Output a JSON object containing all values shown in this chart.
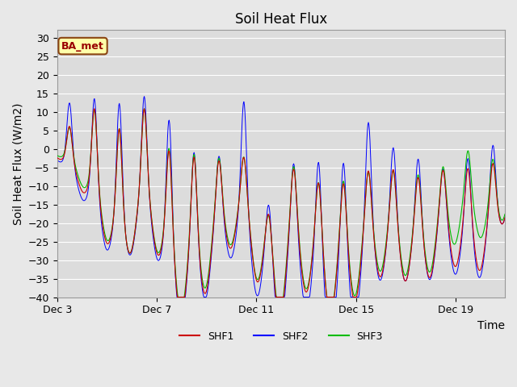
{
  "title": "Soil Heat Flux",
  "ylabel": "Soil Heat Flux (W/m2)",
  "xlabel": "Time",
  "ylim": [
    -40,
    32
  ],
  "yticks": [
    -40,
    -35,
    -30,
    -25,
    -20,
    -15,
    -10,
    -5,
    0,
    5,
    10,
    15,
    20,
    25,
    30
  ],
  "fig_bg_color": "#e8e8e8",
  "plot_bg_color": "#dcdcdc",
  "grid_color": "#ffffff",
  "legend_label": "BA_met",
  "series_colors": {
    "SHF1": "#cc0000",
    "SHF2": "#0000ff",
    "SHF3": "#00bb00"
  },
  "series_names": [
    "SHF1",
    "SHF2",
    "SHF3"
  ],
  "xtick_labels": [
    "Dec 3",
    "Dec 7",
    "Dec 11",
    "Dec 15",
    "Dec 19"
  ],
  "title_fontsize": 12,
  "axis_label_fontsize": 10,
  "tick_fontsize": 9
}
